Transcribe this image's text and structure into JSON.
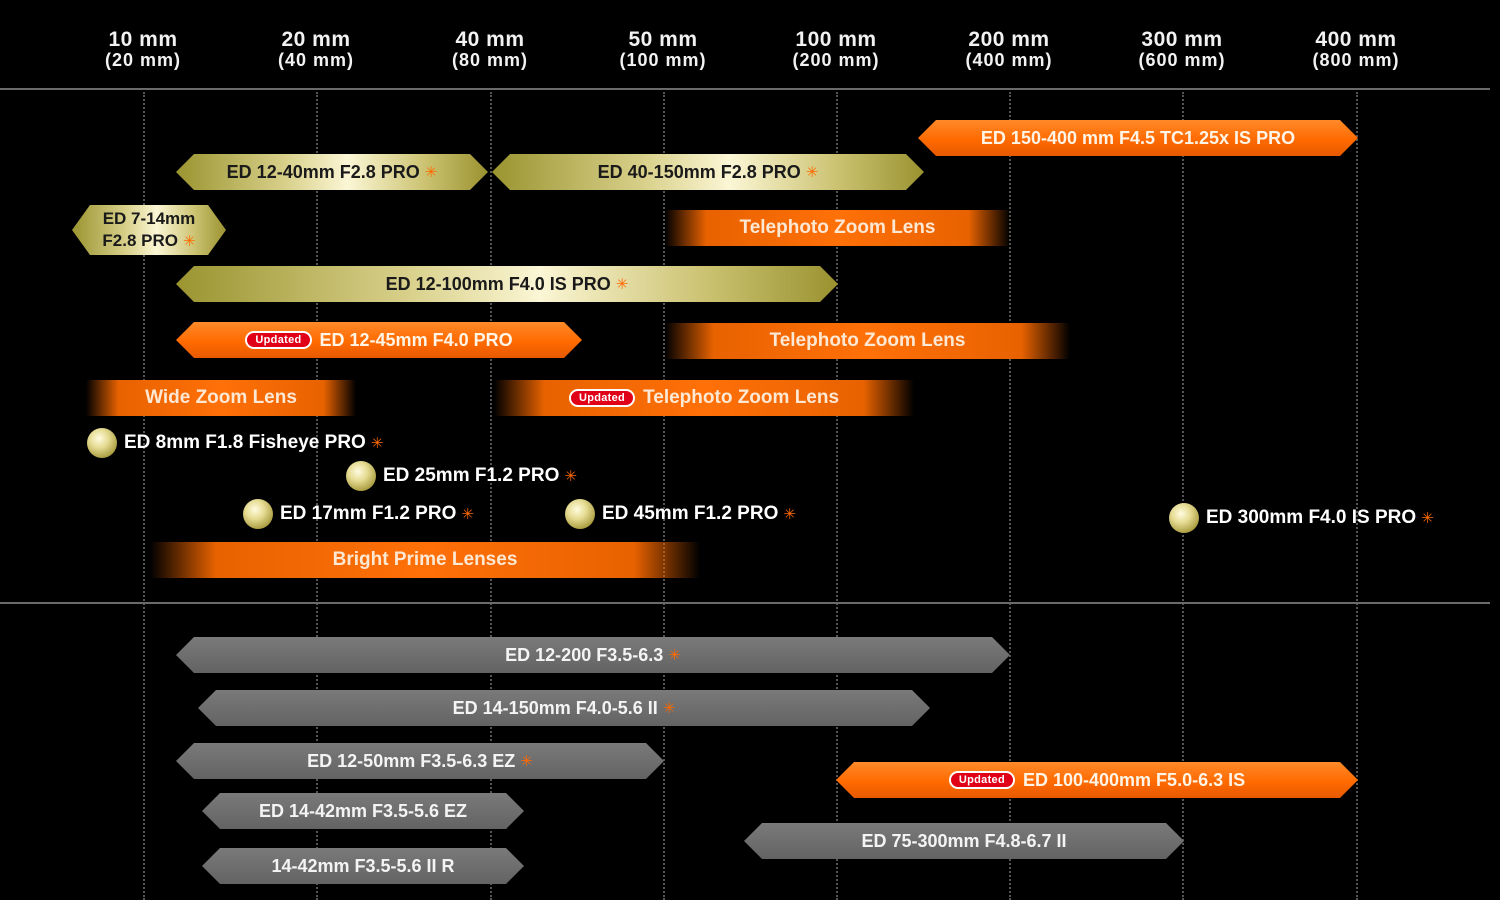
{
  "axis": [
    {
      "main": "10 mm",
      "sub": "(20 mm)"
    },
    {
      "main": "20 mm",
      "sub": "(40 mm)"
    },
    {
      "main": "40 mm",
      "sub": "(80 mm)"
    },
    {
      "main": "50 mm",
      "sub": "(100 mm)"
    },
    {
      "main": "100 mm",
      "sub": "(200 mm)"
    },
    {
      "main": "200 mm",
      "sub": "(400 mm)"
    },
    {
      "main": "300 mm",
      "sub": "(600 mm)"
    },
    {
      "main": "400 mm",
      "sub": "(800 mm)"
    }
  ],
  "pro_lenses": [
    {
      "label": "ED 150-400 mm F4.5 TC1.25x IS PRO",
      "color": "orange",
      "star": false
    },
    {
      "label": "ED 12-40mm F2.8 PRO",
      "color": "gold",
      "star": true
    },
    {
      "label": "ED 40-150mm F2.8 PRO",
      "color": "gold",
      "star": true
    },
    {
      "label_line1": "ED 7-14mm",
      "label_line2": "F2.8 PRO",
      "color": "gold",
      "star": true
    },
    {
      "label": "ED 12-100mm F4.0 IS PRO",
      "color": "gold",
      "star": true
    },
    {
      "label": "ED 12-45mm F4.0 PRO",
      "color": "orange",
      "star": false,
      "badge": "Updated"
    }
  ],
  "categories": [
    {
      "label": "Telephoto Zoom Lens"
    },
    {
      "label": "Telephoto Zoom Lens"
    },
    {
      "label": "Wide Zoom Lens"
    },
    {
      "label": "Telephoto Zoom Lens",
      "badge": "Updated"
    },
    {
      "label": "Bright Prime Lenses"
    }
  ],
  "primes": [
    {
      "label": "ED 8mm F1.8 Fisheye PRO"
    },
    {
      "label": "ED 25mm F1.2 PRO"
    },
    {
      "label": "ED 17mm F1.2 PRO"
    },
    {
      "label": "ED 45mm F1.2 PRO"
    },
    {
      "label": "ED 300mm F4.0 IS PRO"
    }
  ],
  "standard_lenses": [
    {
      "label": "ED 12-200 F3.5-6.3",
      "color": "gray",
      "star": true
    },
    {
      "label": "ED 14-150mm F4.0-5.6 II",
      "color": "gray",
      "star": true
    },
    {
      "label": "ED 12-50mm F3.5-6.3 EZ",
      "color": "gray",
      "star": true
    },
    {
      "label": "ED 100-400mm F5.0-6.3 IS",
      "color": "orange",
      "star": false,
      "badge": "Updated"
    },
    {
      "label": "ED 14-42mm F3.5-5.6 EZ",
      "color": "gray",
      "star": false
    },
    {
      "label": "ED 75-300mm F4.8-6.7 II",
      "color": "gray",
      "star": false
    },
    {
      "label": "14-42mm F3.5-5.6 II R",
      "color": "gray",
      "star": false
    }
  ],
  "star_glyph": "✳",
  "colors": {
    "orange": "#ff6a00",
    "gold": "#d8d08a",
    "gray": "#6e6e6e",
    "badge_red": "#e00018",
    "background": "#000000"
  }
}
